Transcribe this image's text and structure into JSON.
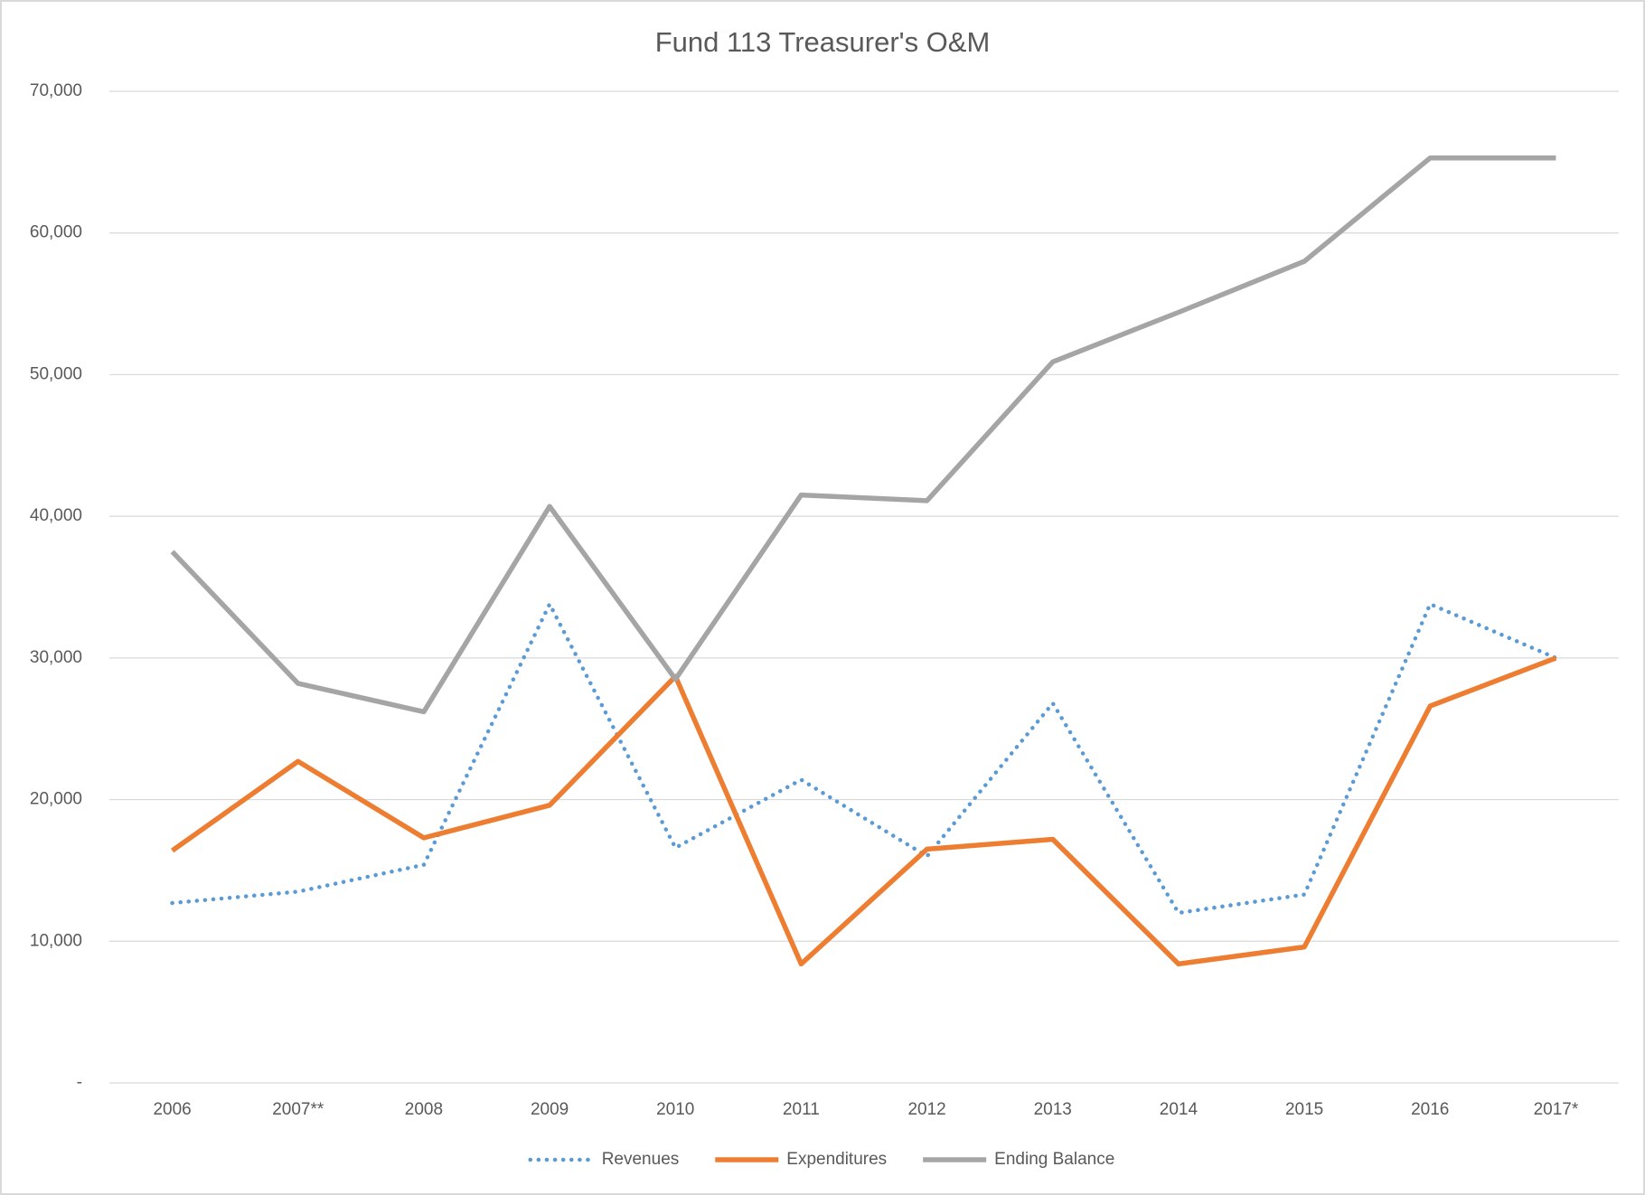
{
  "chart_data": {
    "type": "line",
    "title": "Fund 113 Treasurer's O&M",
    "categories": [
      "2006",
      "2007**",
      "2008",
      "2009",
      "2010",
      "2011",
      "2012",
      "2013",
      "2014",
      "2015",
      "2016",
      "2017*"
    ],
    "series": [
      {
        "name": "Revenues",
        "color": "#5b9bd5",
        "style": "dotted",
        "values": [
          12700,
          13500,
          15400,
          33800,
          16600,
          21400,
          16000,
          26800,
          12000,
          13300,
          33800,
          30000
        ]
      },
      {
        "name": "Expenditures",
        "color": "#ed7d31",
        "style": "solid",
        "values": [
          16400,
          22700,
          17300,
          19600,
          28700,
          8400,
          16500,
          17200,
          8400,
          9600,
          26600,
          30000
        ]
      },
      {
        "name": "Ending Balance",
        "color": "#a5a5a5",
        "style": "solid",
        "values": [
          37500,
          28200,
          26200,
          40700,
          28500,
          41500,
          41100,
          50900,
          54400,
          58000,
          65300,
          65300
        ]
      }
    ],
    "ylim": [
      0,
      70000
    ],
    "yticks": [
      {
        "value": 0,
        "label": "-"
      },
      {
        "value": 10000,
        "label": "10,000"
      },
      {
        "value": 20000,
        "label": "20,000"
      },
      {
        "value": 30000,
        "label": "30,000"
      },
      {
        "value": 40000,
        "label": "40,000"
      },
      {
        "value": 50000,
        "label": "50,000"
      },
      {
        "value": 60000,
        "label": "60,000"
      },
      {
        "value": 70000,
        "label": "70,000"
      }
    ],
    "grid": true,
    "legend": "bottom"
  }
}
